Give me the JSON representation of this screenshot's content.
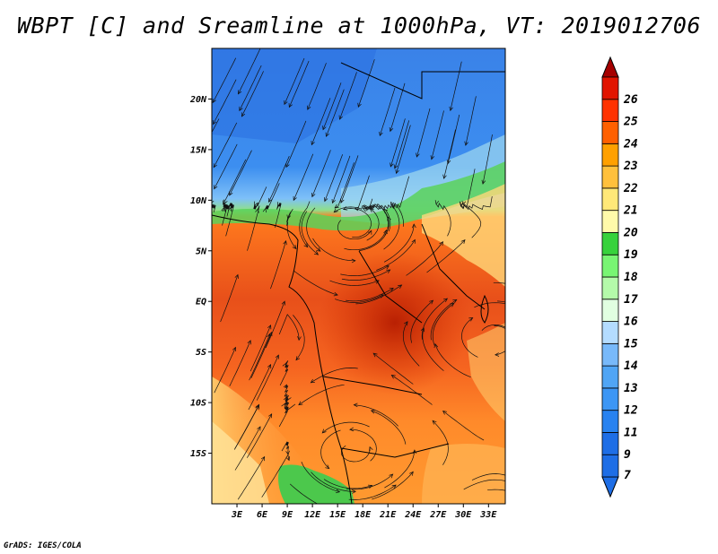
{
  "title": "WBPT [C] and Sreamline at 1000hPa, VT: 2019012706",
  "credit": "GrADS: IGES/COLA",
  "map": {
    "lon_range": [
      0,
      35
    ],
    "lat_range": [
      -20,
      25
    ],
    "lat_ticks": [
      {
        "value": 20,
        "label": "20N"
      },
      {
        "value": 15,
        "label": "15N"
      },
      {
        "value": 10,
        "label": "10N"
      },
      {
        "value": 5,
        "label": "5N"
      },
      {
        "value": 0,
        "label": "EQ"
      },
      {
        "value": -5,
        "label": "5S"
      },
      {
        "value": -10,
        "label": "10S"
      },
      {
        "value": -15,
        "label": "15S"
      }
    ],
    "lon_ticks": [
      {
        "value": 3,
        "label": "3E"
      },
      {
        "value": 6,
        "label": "6E"
      },
      {
        "value": 9,
        "label": "9E"
      },
      {
        "value": 12,
        "label": "12E"
      },
      {
        "value": 15,
        "label": "15E"
      },
      {
        "value": 18,
        "label": "18E"
      },
      {
        "value": 21,
        "label": "21E"
      },
      {
        "value": 24,
        "label": "24E"
      },
      {
        "value": 27,
        "label": "27E"
      },
      {
        "value": 30,
        "label": "30E"
      },
      {
        "value": 33,
        "label": "33E"
      }
    ]
  },
  "colorbar": {
    "levels": [
      {
        "label": "7",
        "color": "#1e6ee6"
      },
      {
        "label": "9",
        "color": "#1e6ee6"
      },
      {
        "label": "11",
        "color": "#2882f0"
      },
      {
        "label": "12",
        "color": "#3c96f5"
      },
      {
        "label": "13",
        "color": "#50a5f5"
      },
      {
        "label": "14",
        "color": "#78b9fa"
      },
      {
        "label": "15",
        "color": "#b4dcff"
      },
      {
        "label": "16",
        "color": "#e1ffe1"
      },
      {
        "label": "17",
        "color": "#b4faaa"
      },
      {
        "label": "18",
        "color": "#78f573"
      },
      {
        "label": "19",
        "color": "#37d23c"
      },
      {
        "label": "20",
        "color": "#fffaaa"
      },
      {
        "label": "21",
        "color": "#ffe878"
      },
      {
        "label": "22",
        "color": "#ffc03c"
      },
      {
        "label": "23",
        "color": "#ffa000"
      },
      {
        "label": "24",
        "color": "#ff6000"
      },
      {
        "label": "25",
        "color": "#ff3200"
      },
      {
        "label": "26",
        "color": "#e11400"
      }
    ],
    "top_color": "#a50000"
  }
}
